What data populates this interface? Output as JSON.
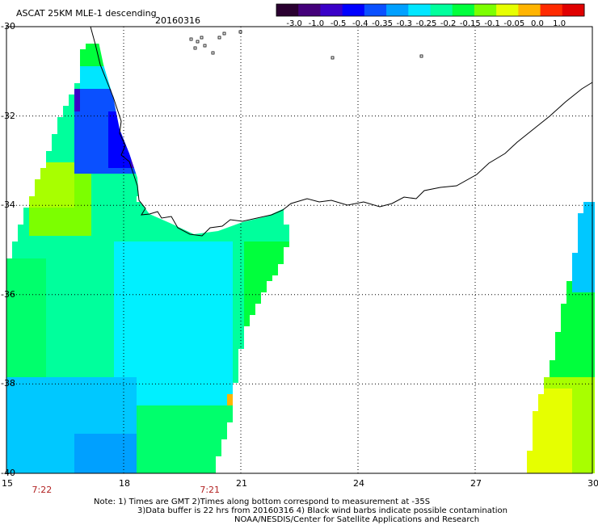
{
  "header": {
    "title": "ASCAT 25KM MLE-1 descending",
    "date": "20160316"
  },
  "colorbar": {
    "tick_labels": [
      "-3.0",
      "-1.0",
      "-0.5",
      "-0.4",
      "-0.35",
      "-0.3",
      "-0.25",
      "-0.2",
      "-0.15",
      "-0.1",
      "-0.05",
      "0.0",
      "1.0"
    ],
    "colors": [
      "#2a0030",
      "#44007a",
      "#3a00c8",
      "#0000ff",
      "#0a50ff",
      "#00a0ff",
      "#00e6ff",
      "#00ff9c",
      "#00ff3c",
      "#7cff00",
      "#e6ff00",
      "#ffb400",
      "#ff2a00",
      "#e00000"
    ]
  },
  "map": {
    "lon_range": [
      15,
      30
    ],
    "lat_range": [
      -40,
      -30
    ],
    "lon_ticks": [
      "15",
      "18",
      "21",
      "24",
      "27",
      "30"
    ],
    "lat_ticks": [
      "-30",
      "-32",
      "-34",
      "-36",
      "-38",
      "-40"
    ],
    "time_labels": [
      {
        "text": "7:22",
        "lon": 15.9
      },
      {
        "text": "7:21",
        "lon": 20.2
      }
    ],
    "grid": true,
    "coastline_color": "#000000"
  },
  "notes": [
    "Note: 1) Times are GMT 2)Times along bottom correspond to measurement at -35S",
    "3)Data buffer is 22 hrs from 20160316 4) Black wind barbs indicate possible contamination",
    "NOAA/NESDIS/Center for Satellite Applications and Research"
  ]
}
